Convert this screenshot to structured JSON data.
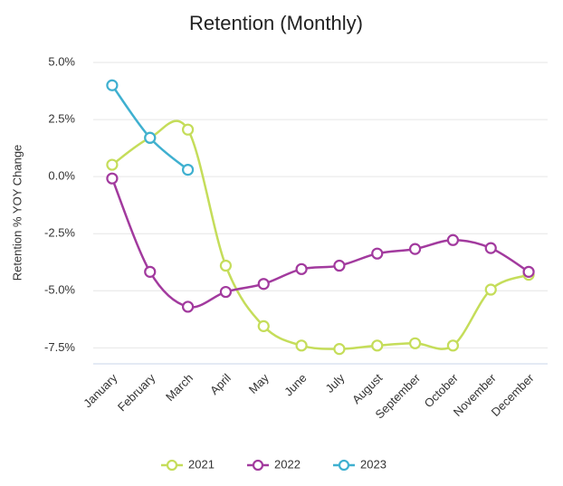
{
  "chart_data": {
    "type": "line",
    "title": "Retention (Monthly)",
    "y_label": "Retention % YOY Change",
    "categories": [
      "January",
      "February",
      "March",
      "April",
      "May",
      "June",
      "July",
      "August",
      "September",
      "October",
      "November",
      "December"
    ],
    "series": [
      {
        "name": "2021",
        "color": "#c5dd5a",
        "values": [
          0.52,
          1.7,
          2.06,
          -3.9,
          -6.55,
          -7.4,
          -7.55,
          -7.4,
          -7.3,
          -7.4,
          -4.95,
          -4.3
        ]
      },
      {
        "name": "2022",
        "color": "#a23a9e",
        "values": [
          -0.08,
          -4.17,
          -5.7,
          -5.05,
          -4.7,
          -4.05,
          -3.9,
          -3.37,
          -3.17,
          -2.78,
          -3.13,
          -4.17
        ]
      },
      {
        "name": "2023",
        "color": "#3fb0d0",
        "values": [
          4.0,
          1.7,
          0.3,
          null,
          null,
          null,
          null,
          null,
          null,
          null,
          null,
          null
        ]
      }
    ],
    "ylim": [
      -8.2,
      5.2
    ],
    "yticks": [
      {
        "value": 5,
        "label": "5.0%"
      },
      {
        "value": 2.5,
        "label": "2.5%"
      },
      {
        "value": 0,
        "label": "0.0%"
      },
      {
        "value": -2.5,
        "label": "-2.5%"
      },
      {
        "value": -5,
        "label": "-5.0%"
      },
      {
        "value": -7.5,
        "label": "-7.5%"
      }
    ],
    "grid": true,
    "legend": "bottom"
  }
}
